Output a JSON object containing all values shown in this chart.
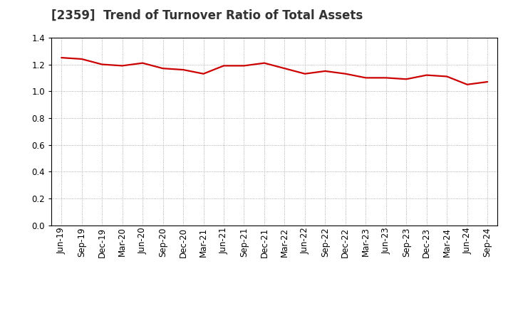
{
  "title": "[2359]  Trend of Turnover Ratio of Total Assets",
  "x_labels": [
    "Jun-19",
    "Sep-19",
    "Dec-19",
    "Mar-20",
    "Jun-20",
    "Sep-20",
    "Dec-20",
    "Mar-21",
    "Jun-21",
    "Sep-21",
    "Dec-21",
    "Mar-22",
    "Jun-22",
    "Sep-22",
    "Dec-22",
    "Mar-23",
    "Jun-23",
    "Sep-23",
    "Dec-23",
    "Mar-24",
    "Jun-24",
    "Sep-24"
  ],
  "values": [
    1.25,
    1.24,
    1.2,
    1.19,
    1.21,
    1.17,
    1.16,
    1.13,
    1.19,
    1.19,
    1.21,
    1.17,
    1.13,
    1.15,
    1.13,
    1.1,
    1.1,
    1.09,
    1.12,
    1.11,
    1.05,
    1.07
  ],
  "line_color": "#cc0000",
  "line_width": 1.6,
  "ylim": [
    0.0,
    1.4
  ],
  "yticks": [
    0.0,
    0.2,
    0.4,
    0.6,
    0.8,
    1.0,
    1.2,
    1.4
  ],
  "background_color": "#ffffff",
  "plot_bg_color": "#ffffff",
  "grid_color": "#999999",
  "title_fontsize": 12,
  "tick_fontsize": 8.5
}
